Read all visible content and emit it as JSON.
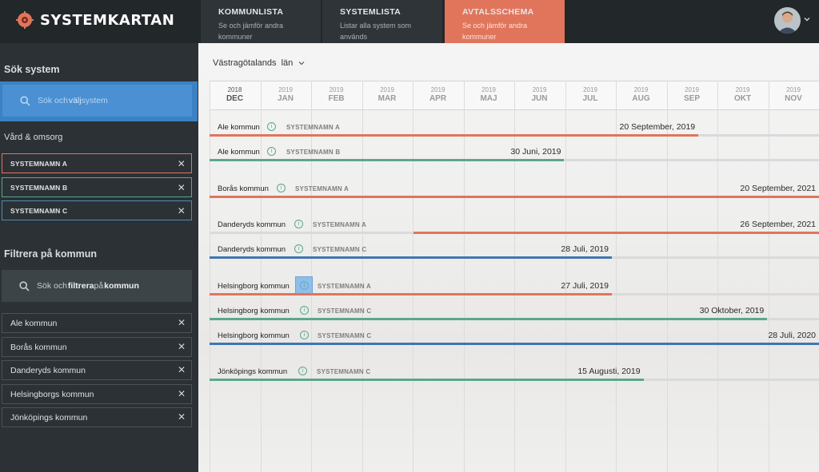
{
  "app": {
    "title": "SYSTEMKARTAN",
    "brand_color": "#e0755c"
  },
  "tabs": [
    {
      "title": "KOMMUNLISTA",
      "desc": "Se och jämför andra kommuner",
      "active": false
    },
    {
      "title": "SYSTEMLISTA",
      "desc": "Listar alla system som används",
      "active": false
    },
    {
      "title": "AVTALSSCHEMA",
      "desc": "Se och jämför andra kommuner",
      "active": true
    }
  ],
  "sidebar": {
    "search_system_heading": "Sök system",
    "search_system_placeholder_pre": "Sök och ",
    "search_system_placeholder_bold": "välj",
    "search_system_placeholder_post": " system",
    "category": "Vård & omsorg",
    "systems": [
      {
        "label": "SYSTEMNAMN A",
        "color": "#e0755c"
      },
      {
        "label": "SYSTEMNAMN B",
        "color": "#5aa88a"
      },
      {
        "label": "SYSTEMNAMN C",
        "color": "#3f76b3"
      }
    ],
    "filter_heading": "Filtrera på kommun",
    "kommun_placeholder_pre": "Sök och ",
    "kommun_placeholder_bold1": "filtrera",
    "kommun_placeholder_mid": " på ",
    "kommun_placeholder_bold2": "kommun",
    "kommuner": [
      "Ale kommun",
      "Borås kommun",
      "Danderyds kommun",
      "Helsingborgs kommun",
      "Jönköpings kommun"
    ]
  },
  "main": {
    "region": "Västragötalands  län",
    "months": [
      {
        "year": "2018",
        "month": "DEC"
      },
      {
        "year": "2019",
        "month": "JAN"
      },
      {
        "year": "2019",
        "month": "FEB"
      },
      {
        "year": "2019",
        "month": "MAR"
      },
      {
        "year": "2019",
        "month": "APR"
      },
      {
        "year": "2019",
        "month": "MAJ"
      },
      {
        "year": "2019",
        "month": "JUN"
      },
      {
        "year": "2019",
        "month": "JUL"
      },
      {
        "year": "2019",
        "month": "AUG"
      },
      {
        "year": "2019",
        "month": "SEP"
      },
      {
        "year": "2019",
        "month": "OKT"
      },
      {
        "year": "2019",
        "month": "NOV"
      }
    ],
    "rows": [
      {
        "kommun": "Ale kommun",
        "system": "SYSTEMNAMN A",
        "date": "20 September, 2019",
        "color": "#e0755c",
        "progress": 0.802
      },
      {
        "kommun": "Ale kommun",
        "system": "SYSTEMNAMN B",
        "date": "30 Juni, 2019",
        "color": "#5aa88a",
        "progress": 0.582
      },
      {
        "kommun": "Borås kommun",
        "system": "SYSTEMNAMN A",
        "date": "20 September, 2021",
        "color": "#e0755c",
        "progress": 1.0
      },
      {
        "kommun": "Danderyds kommun",
        "system": "SYSTEMNAMN A",
        "date": "26 September, 2021",
        "color": "#e0755c",
        "progress": 1.0
      },
      {
        "kommun": "Danderyds kommun",
        "system": "SYSTEMNAMN C",
        "date": "28 Juli, 2019",
        "color": "#3f76b3",
        "progress": 0.66
      },
      {
        "kommun": "Helsingborg kommun",
        "system": "SYSTEMNAMN A",
        "date": "27 Juli, 2019",
        "color": "#e0755c",
        "progress": 0.66
      },
      {
        "kommun": "Helsingborg kommun",
        "system": "SYSTEMNAMN C",
        "date": "30 Oktober, 2019",
        "color": "#5aa88a",
        "progress": 0.915
      },
      {
        "kommun": "Helsingborg kommun",
        "system": "SYSTEMNAMN C",
        "date": "28 Juli, 2020",
        "color": "#3f76b3",
        "progress": 1.0
      },
      {
        "kommun": "Jönköpings kommun",
        "system": "SYSTEMNAMN C",
        "date": "15 Augusti, 2019",
        "color": "#5aa88a",
        "progress": 0.712
      }
    ]
  }
}
